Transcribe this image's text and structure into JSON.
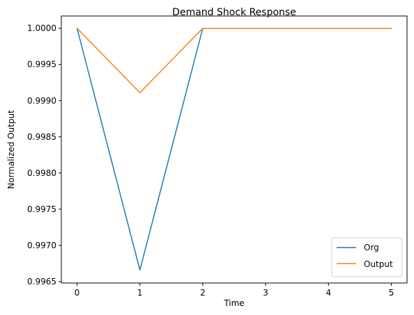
{
  "chart_data": {
    "type": "line",
    "title": "Demand Shock Response",
    "xlabel": "Time",
    "ylabel": "Normalized Output",
    "x": [
      0,
      1,
      2,
      3,
      4,
      5
    ],
    "xlim": [
      -0.25,
      5.25
    ],
    "ylim": [
      0.99648,
      1.00017
    ],
    "xticks": [
      0,
      1,
      2,
      3,
      4,
      5
    ],
    "xtick_labels": [
      "0",
      "1",
      "2",
      "3",
      "4",
      "5"
    ],
    "yticks": [
      0.9965,
      0.997,
      0.9975,
      0.998,
      0.9985,
      0.999,
      0.9995,
      1.0
    ],
    "ytick_labels": [
      "0.9965",
      "0.9970",
      "0.9975",
      "0.9980",
      "0.9985",
      "0.9990",
      "0.9995",
      "1.0000"
    ],
    "grid": false,
    "legend_position": "lower-right",
    "series": [
      {
        "name": "Org",
        "color": "#1f77b4",
        "values": [
          1.0,
          0.99666,
          1.0,
          1.0,
          1.0,
          1.0
        ]
      },
      {
        "name": "Output",
        "color": "#ff7f0e",
        "values": [
          1.0,
          0.99911,
          1.0,
          1.0,
          1.0,
          1.0
        ]
      }
    ]
  }
}
